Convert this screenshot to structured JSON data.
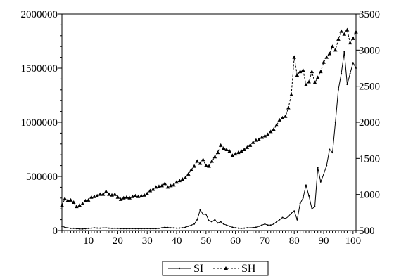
{
  "chart_data": {
    "type": "line",
    "title": "",
    "xlabel": "",
    "ylabel": "",
    "xlim": [
      1,
      101
    ],
    "ylim_left": [
      0,
      2000000
    ],
    "ylim_right": [
      500,
      3500
    ],
    "x_ticks": [
      "10",
      "20",
      "30",
      "40",
      "50",
      "60",
      "70",
      "80",
      "90",
      "100"
    ],
    "y_ticks_left": [
      "0",
      "500000",
      "1000000",
      "1500000",
      "2000000"
    ],
    "y_ticks_right": [
      "500",
      "1000",
      "1500",
      "2000",
      "2500",
      "3000",
      "3500"
    ],
    "grid": false,
    "legend_position": "bottom-center",
    "legend": [
      {
        "label": "SI",
        "style": "solid"
      },
      {
        "label": "SH",
        "style": "dashed"
      }
    ],
    "series": [
      {
        "name": "SI",
        "axis": "left",
        "x": [
          1,
          2,
          3,
          4,
          5,
          6,
          7,
          8,
          9,
          10,
          11,
          12,
          13,
          14,
          15,
          16,
          17,
          18,
          19,
          20,
          21,
          22,
          23,
          24,
          25,
          26,
          27,
          28,
          29,
          30,
          31,
          32,
          33,
          34,
          35,
          36,
          37,
          38,
          39,
          40,
          41,
          42,
          43,
          44,
          45,
          46,
          47,
          48,
          49,
          50,
          51,
          52,
          53,
          54,
          55,
          56,
          57,
          58,
          59,
          60,
          61,
          62,
          63,
          64,
          65,
          66,
          67,
          68,
          69,
          70,
          71,
          72,
          73,
          74,
          75,
          76,
          77,
          78,
          79,
          80,
          81,
          82,
          83,
          84,
          85,
          86,
          87,
          88,
          89,
          90,
          91,
          92,
          93,
          94,
          95,
          96,
          97,
          98,
          99,
          100,
          101
        ],
        "values": [
          40000,
          30000,
          25000,
          20000,
          20000,
          18000,
          15000,
          15000,
          17000,
          20000,
          22000,
          25000,
          23000,
          22000,
          24000,
          25000,
          22000,
          20000,
          21000,
          20000,
          18000,
          18000,
          17000,
          18000,
          19000,
          18000,
          17000,
          17000,
          18000,
          19000,
          18000,
          17000,
          18000,
          20000,
          25000,
          30000,
          28000,
          25000,
          24000,
          22000,
          23000,
          25000,
          30000,
          40000,
          50000,
          60000,
          100000,
          190000,
          150000,
          150000,
          90000,
          80000,
          100000,
          70000,
          80000,
          60000,
          50000,
          40000,
          30000,
          25000,
          22000,
          20000,
          22000,
          25000,
          25000,
          28000,
          30000,
          40000,
          50000,
          60000,
          50000,
          50000,
          60000,
          80000,
          100000,
          120000,
          110000,
          130000,
          160000,
          180000,
          100000,
          250000,
          300000,
          420000,
          320000,
          200000,
          220000,
          580000,
          450000,
          520000,
          600000,
          750000,
          720000,
          1000000,
          1300000,
          1450000,
          1650000,
          1350000,
          1450000,
          1550000,
          1500000
        ]
      },
      {
        "name": "SH",
        "axis": "right",
        "x": [
          1,
          2,
          3,
          4,
          5,
          6,
          7,
          8,
          9,
          10,
          11,
          12,
          13,
          14,
          15,
          16,
          17,
          18,
          19,
          20,
          21,
          22,
          23,
          24,
          25,
          26,
          27,
          28,
          29,
          30,
          31,
          32,
          33,
          34,
          35,
          36,
          37,
          38,
          39,
          40,
          41,
          42,
          43,
          44,
          45,
          46,
          47,
          48,
          49,
          50,
          51,
          52,
          53,
          54,
          55,
          56,
          57,
          58,
          59,
          60,
          61,
          62,
          63,
          64,
          65,
          66,
          67,
          68,
          69,
          70,
          71,
          72,
          73,
          74,
          75,
          76,
          77,
          78,
          79,
          80,
          81,
          82,
          83,
          84,
          85,
          86,
          87,
          88,
          89,
          90,
          91,
          92,
          93,
          94,
          95,
          96,
          97,
          98,
          99,
          100,
          101
        ],
        "values": [
          850,
          940,
          915,
          920,
          890,
          830,
          850,
          870,
          910,
          920,
          960,
          970,
          980,
          1000,
          1000,
          1040,
          1000,
          990,
          1000,
          960,
          930,
          950,
          960,
          950,
          970,
          980,
          970,
          980,
          990,
          1010,
          1050,
          1070,
          1100,
          1110,
          1120,
          1150,
          1100,
          1120,
          1130,
          1170,
          1190,
          1210,
          1230,
          1280,
          1340,
          1390,
          1460,
          1430,
          1480,
          1400,
          1390,
          1460,
          1520,
          1580,
          1680,
          1640,
          1620,
          1600,
          1540,
          1560,
          1580,
          1600,
          1620,
          1650,
          1680,
          1720,
          1750,
          1760,
          1790,
          1810,
          1830,
          1870,
          1900,
          1960,
          2030,
          2060,
          2080,
          2200,
          2380,
          2900,
          2650,
          2700,
          2720,
          2520,
          2560,
          2700,
          2550,
          2620,
          2700,
          2830,
          2900,
          2950,
          3050,
          3000,
          3150,
          3260,
          3220,
          3280,
          3100,
          3160,
          3250
        ]
      }
    ]
  }
}
